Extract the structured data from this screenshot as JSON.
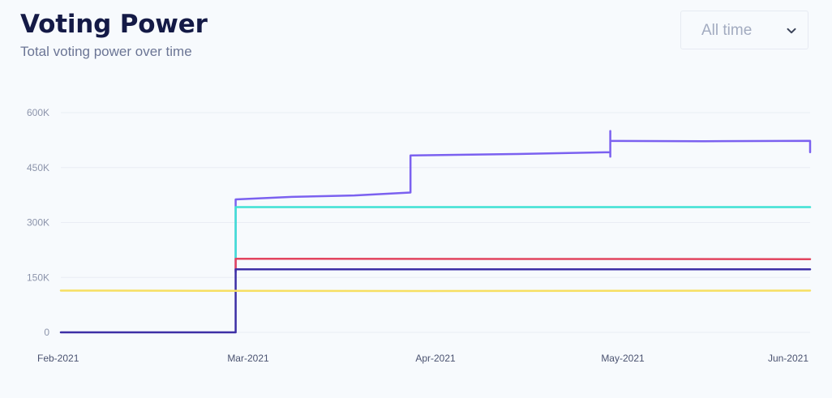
{
  "header": {
    "title": "Voting Power",
    "subtitle": "Total voting power over time"
  },
  "range_select": {
    "selected": "All time",
    "icon": "chevron-down-icon"
  },
  "colors": {
    "background": "#f7fafd",
    "gridline": "#e9edf4",
    "tick_text": "#8c94ab",
    "purple": "#7b61f0",
    "cyan": "#3fe1d4",
    "red": "#e2445f",
    "navy": "#3d2fa6",
    "yellow": "#f7df62"
  },
  "chart_data": {
    "type": "line",
    "title": "",
    "xlabel": "",
    "ylabel": "",
    "x_ticks": [
      "Feb-2021",
      "Mar-2021",
      "Apr-2021",
      "May-2021",
      "Jun-2021"
    ],
    "y_ticks": [
      {
        "value": 0,
        "label": "0"
      },
      {
        "value": 150000,
        "label": "150K"
      },
      {
        "value": 300000,
        "label": "300K"
      },
      {
        "value": 450000,
        "label": "450K"
      },
      {
        "value": 600000,
        "label": "600K"
      }
    ],
    "xlim": [
      "2021-02-01",
      "2021-06-01"
    ],
    "ylim": [
      0,
      600000
    ],
    "grid": true,
    "legend": "none",
    "series": [
      {
        "color": "purple",
        "points": [
          [
            "2021-03-01",
            165000
          ],
          [
            "2021-03-01",
            363000
          ],
          [
            "2021-03-10",
            370000
          ],
          [
            "2021-03-20",
            374000
          ],
          [
            "2021-03-29",
            382000
          ],
          [
            "2021-03-29",
            483000
          ],
          [
            "2021-04-15",
            487000
          ],
          [
            "2021-04-30",
            492000
          ],
          [
            "2021-04-30",
            550000
          ],
          [
            "2021-04-30",
            480000
          ],
          [
            "2021-04-30",
            523000
          ],
          [
            "2021-05-15",
            522000
          ],
          [
            "2021-06-01",
            523000
          ],
          [
            "2021-06-01",
            492000
          ]
        ]
      },
      {
        "color": "cyan",
        "points": [
          [
            "2021-03-01",
            200000
          ],
          [
            "2021-03-01",
            342000
          ],
          [
            "2021-06-01",
            342000
          ]
        ]
      },
      {
        "color": "red",
        "points": [
          [
            "2021-03-01",
            170000
          ],
          [
            "2021-03-01",
            201000
          ],
          [
            "2021-06-01",
            200000
          ]
        ]
      },
      {
        "color": "navy",
        "points": [
          [
            "2021-02-01",
            0
          ],
          [
            "2021-03-01",
            0
          ],
          [
            "2021-03-01",
            172000
          ],
          [
            "2021-06-01",
            172000
          ]
        ]
      },
      {
        "color": "yellow",
        "points": [
          [
            "2021-02-01",
            114000
          ],
          [
            "2021-04-01",
            113000
          ],
          [
            "2021-06-01",
            114000
          ]
        ]
      }
    ]
  }
}
